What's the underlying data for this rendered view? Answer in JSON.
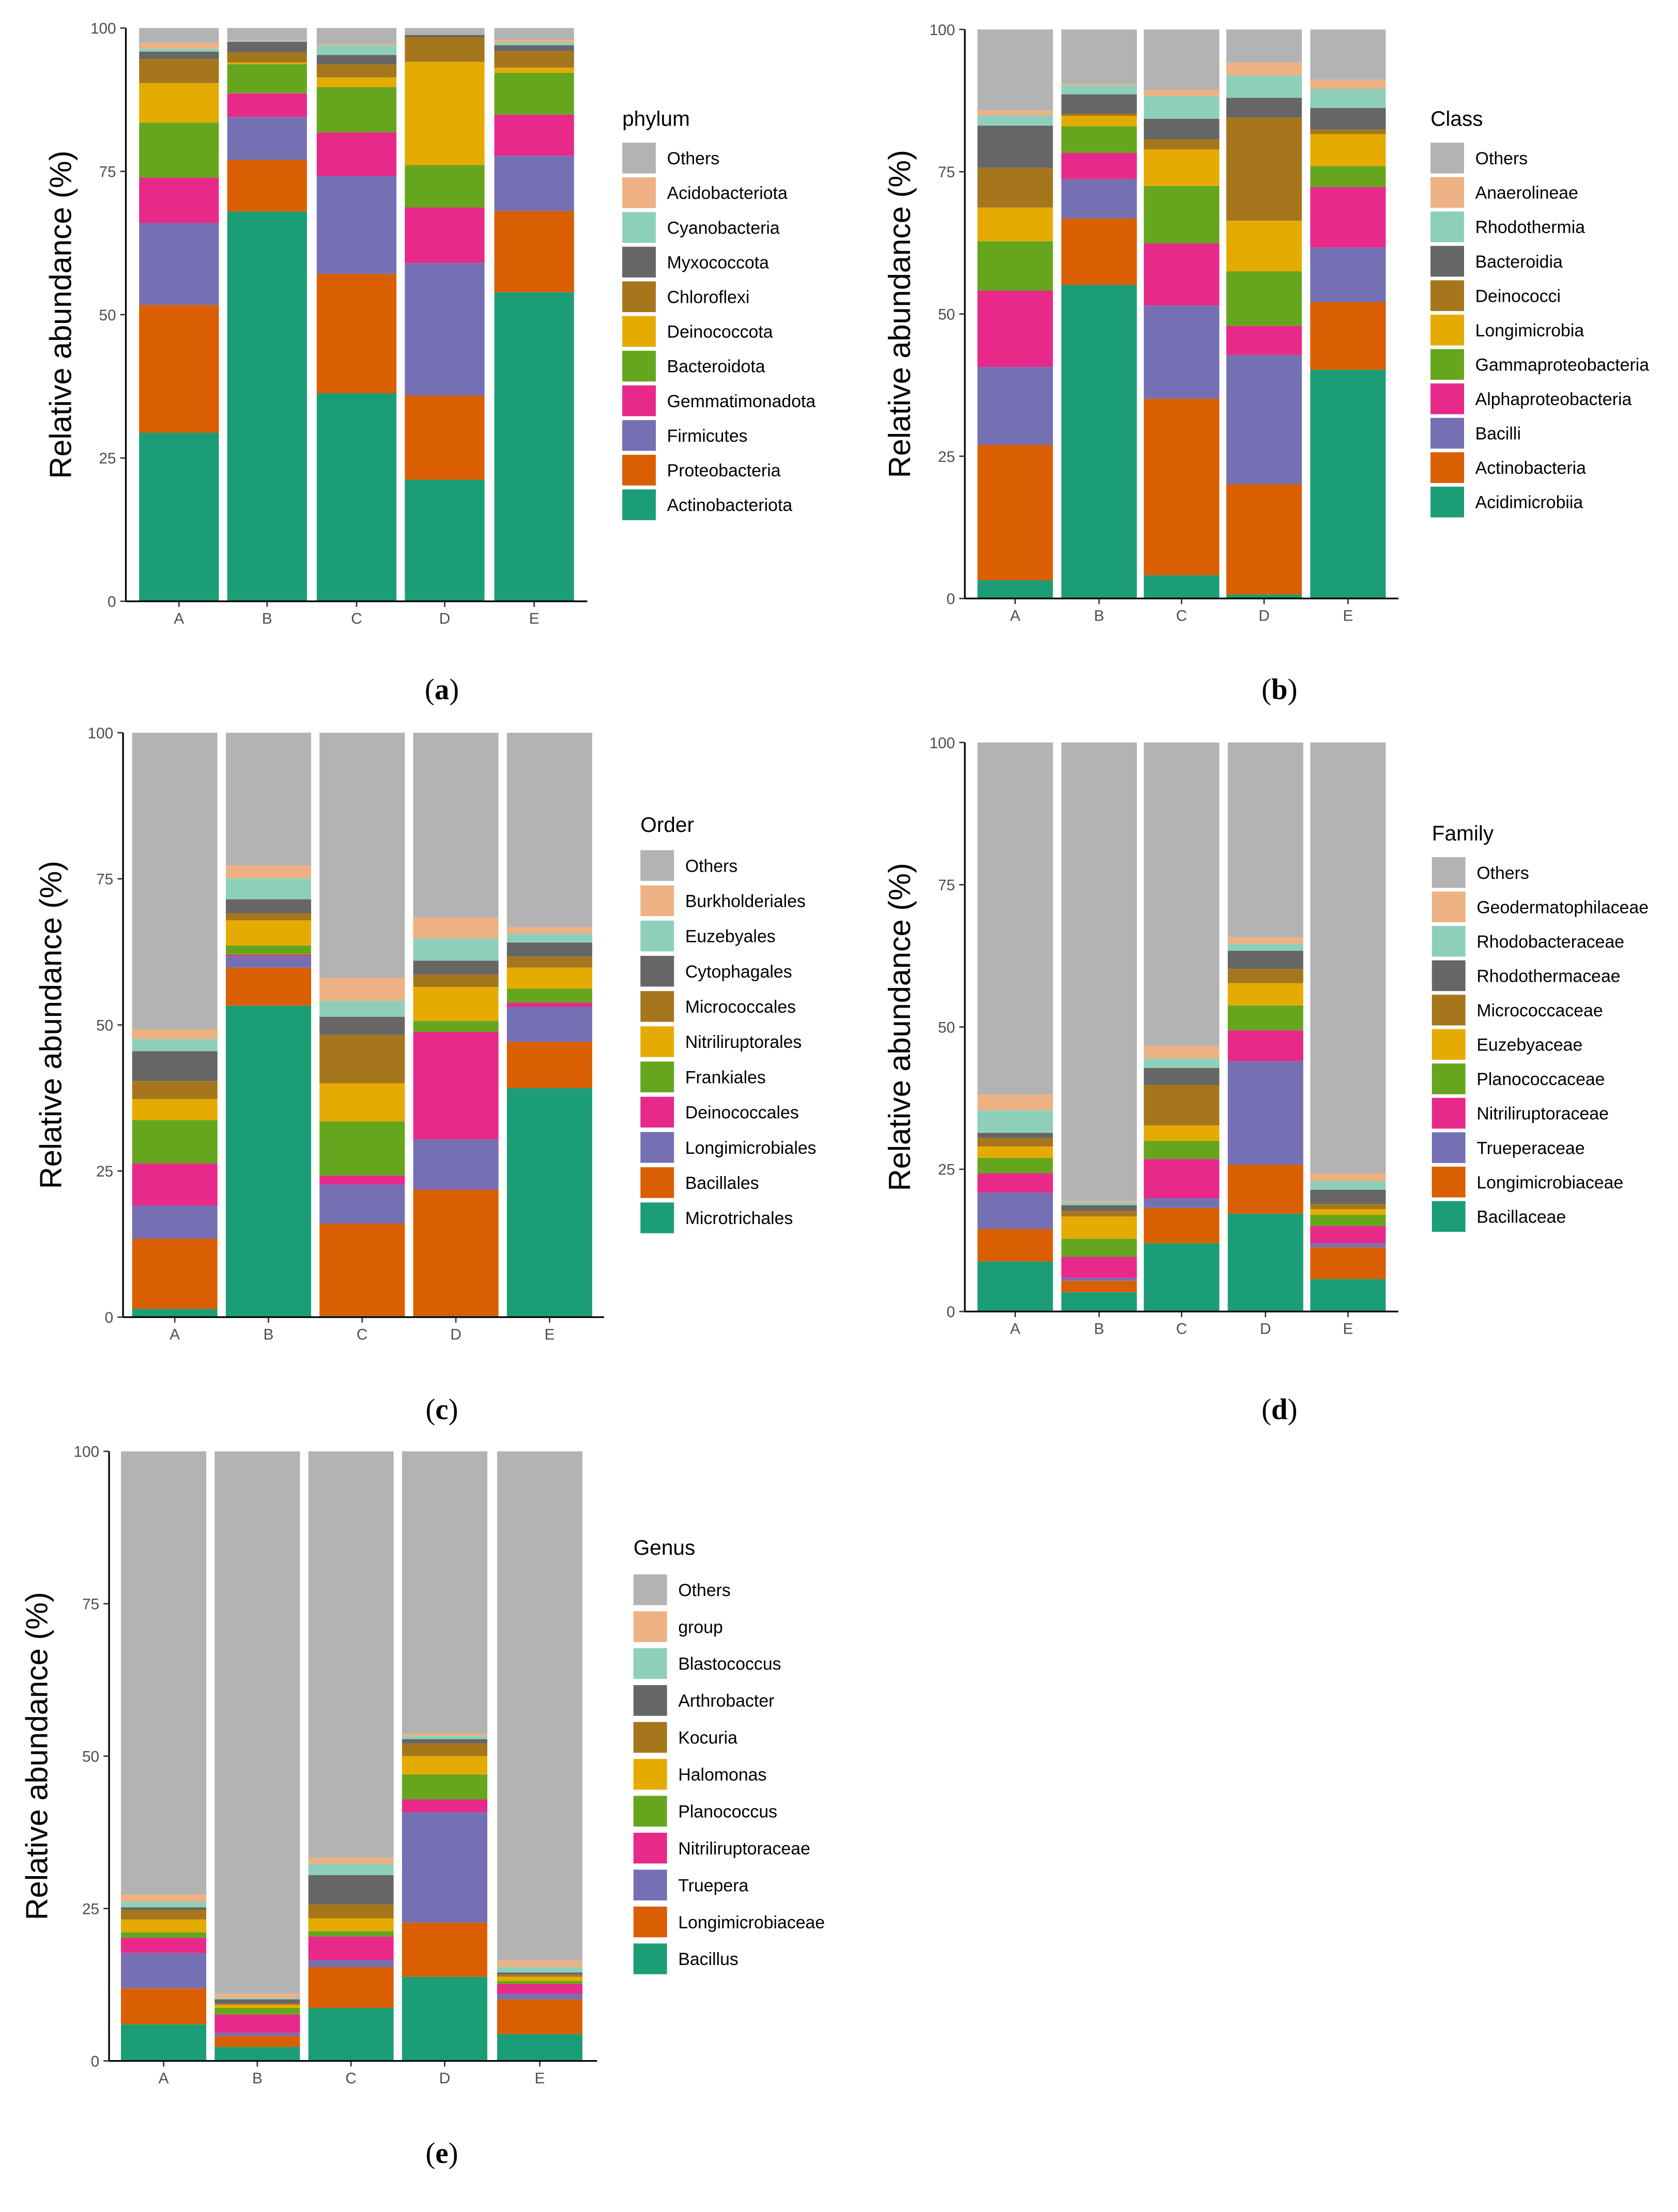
{
  "colors": {
    "Others": "#B3B3B3",
    "c10": "#EDB183",
    "c9": "#8ECFBB",
    "c8": "#666666",
    "c7": "#A6761D",
    "c6": "#E6AB02",
    "c5": "#66A61E",
    "c4": "#E7298A",
    "c3": "#7570B3",
    "c2": "#D95F02",
    "c1": "#1B9E77"
  },
  "chart_data": [
    {
      "type": "bar",
      "stacked": true,
      "caption_letter": "a",
      "ylabel": "Relative abundance (%)",
      "ylim": [
        0,
        100
      ],
      "yticks": [
        "0",
        "25",
        "50",
        "75",
        "100"
      ],
      "categories": [
        "A",
        "B",
        "C",
        "D",
        "E"
      ],
      "legend_title": "phylum",
      "legend_position": "right",
      "series": [
        {
          "name": "Others",
          "values": [
            2.6,
            2.2,
            2.8,
            1.2,
            2.0
          ]
        },
        {
          "name": "Acidobacteriota",
          "values": [
            1.0,
            0.1,
            0.2,
            0.0,
            0.5
          ]
        },
        {
          "name": "Cyanobacteria",
          "values": [
            0.5,
            0.1,
            1.7,
            0.0,
            0.5
          ]
        },
        {
          "name": "Myxococcota",
          "values": [
            1.3,
            1.8,
            1.6,
            0.4,
            1.0
          ]
        },
        {
          "name": "Chloroflexi",
          "values": [
            4.2,
            1.8,
            2.3,
            4.3,
            2.9
          ]
        },
        {
          "name": "Deinococcota",
          "values": [
            6.9,
            0.3,
            1.7,
            18.0,
            0.9
          ]
        },
        {
          "name": "Bacteroidota",
          "values": [
            9.6,
            5.1,
            7.9,
            7.4,
            7.3
          ]
        },
        {
          "name": "Gemmatimonadota",
          "values": [
            7.9,
            4.1,
            7.6,
            9.7,
            7.2
          ]
        },
        {
          "name": "Firmicutes",
          "values": [
            14.3,
            7.5,
            17.1,
            23.1,
            9.6
          ]
        },
        {
          "name": "Proteobacteria",
          "values": [
            22.3,
            9.0,
            20.8,
            14.7,
            14.2
          ]
        },
        {
          "name": "Actinobacteriota",
          "values": [
            29.4,
            68.0,
            36.3,
            21.2,
            53.9
          ]
        }
      ]
    },
    {
      "type": "bar",
      "stacked": true,
      "caption_letter": "b",
      "ylabel": "Relative abundance (%)",
      "ylim": [
        0,
        100
      ],
      "yticks": [
        "0",
        "25",
        "50",
        "75",
        "100"
      ],
      "categories": [
        "A",
        "B",
        "C",
        "D",
        "E"
      ],
      "legend_title": "Class",
      "legend_position": "right",
      "series": [
        {
          "name": "Others",
          "values": [
            14.2,
            9.6,
            10.6,
            5.8,
            8.8
          ]
        },
        {
          "name": "Anaerolineae",
          "values": [
            0.9,
            0.2,
            1.1,
            2.3,
            1.6
          ]
        },
        {
          "name": "Rhodothermia",
          "values": [
            1.8,
            1.6,
            4.0,
            3.9,
            3.4
          ]
        },
        {
          "name": "Bacteroidia",
          "values": [
            7.4,
            3.4,
            3.6,
            3.5,
            3.8
          ]
        },
        {
          "name": "Deinococci",
          "values": [
            7.0,
            0.4,
            1.8,
            18.1,
            0.8
          ]
        },
        {
          "name": "Longimicrobia",
          "values": [
            5.9,
            1.8,
            6.4,
            8.9,
            5.6
          ]
        },
        {
          "name": "Gammaproteobacteria",
          "values": [
            8.7,
            4.7,
            10.1,
            9.6,
            3.7
          ]
        },
        {
          "name": "Alphaproteobacteria",
          "values": [
            13.4,
            4.6,
            10.9,
            5.1,
            10.6
          ]
        },
        {
          "name": "Bacilli",
          "values": [
            13.7,
            6.9,
            16.4,
            22.7,
            9.6
          ]
        },
        {
          "name": "Actinobacteria",
          "values": [
            23.8,
            11.7,
            31.0,
            19.4,
            11.9
          ]
        },
        {
          "name": "Acidimicrobiia",
          "values": [
            3.2,
            55.1,
            4.1,
            0.7,
            40.2
          ]
        }
      ]
    },
    {
      "type": "bar",
      "stacked": true,
      "caption_letter": "c",
      "ylabel": "Relative abundance (%)",
      "ylim": [
        0,
        100
      ],
      "yticks": [
        "0",
        "25",
        "50",
        "75",
        "100"
      ],
      "categories": [
        "A",
        "B",
        "C",
        "D",
        "E"
      ],
      "legend_title": "Order",
      "legend_position": "right",
      "series": [
        {
          "name": "Others",
          "values": [
            50.7,
            22.7,
            41.9,
            31.6,
            33.3
          ]
        },
        {
          "name": "Burkholderiales",
          "values": [
            1.7,
            2.2,
            4.0,
            3.6,
            1.1
          ]
        },
        {
          "name": "Euzebyales",
          "values": [
            2.1,
            3.6,
            2.7,
            3.8,
            1.5
          ]
        },
        {
          "name": "Cytophagales",
          "values": [
            5.1,
            2.4,
            3.1,
            2.4,
            2.4
          ]
        },
        {
          "name": "Micrococcales",
          "values": [
            3.1,
            1.2,
            8.3,
            2.1,
            1.9
          ]
        },
        {
          "name": "Nitriliruptorales",
          "values": [
            3.6,
            4.3,
            6.5,
            5.8,
            3.6
          ]
        },
        {
          "name": "Frankiales",
          "values": [
            7.4,
            1.6,
            9.3,
            1.9,
            2.4
          ]
        },
        {
          "name": "Deinococcales",
          "values": [
            7.2,
            0.3,
            1.5,
            18.4,
            0.7
          ]
        },
        {
          "name": "Longimicrobiales",
          "values": [
            5.7,
            1.9,
            6.7,
            8.6,
            6.0
          ]
        },
        {
          "name": "Bacillales",
          "values": [
            12.0,
            6.5,
            15.8,
            21.6,
            7.9
          ]
        },
        {
          "name": "Microtrichales",
          "values": [
            1.4,
            53.3,
            0.2,
            0.2,
            39.2
          ]
        }
      ]
    },
    {
      "type": "bar",
      "stacked": true,
      "caption_letter": "d",
      "ylabel": "Relative abundance (%)",
      "ylim": [
        0,
        100
      ],
      "yticks": [
        "0",
        "25",
        "50",
        "75",
        "100"
      ],
      "categories": [
        "A",
        "B",
        "C",
        "D",
        "E"
      ],
      "legend_title": "Family",
      "legend_position": "right",
      "series": [
        {
          "name": "Others",
          "values": [
            61.9,
            80.6,
            53.3,
            34.2,
            75.7
          ]
        },
        {
          "name": "Geodermatophilaceae",
          "values": [
            2.7,
            0.2,
            2.2,
            1.2,
            1.4
          ]
        },
        {
          "name": "Rhodobacteraceae",
          "values": [
            4.0,
            0.5,
            1.7,
            1.2,
            1.5
          ]
        },
        {
          "name": "Rhodothermaceae",
          "values": [
            0.9,
            1.0,
            3.0,
            3.2,
            2.5
          ]
        },
        {
          "name": "Micrococcaceae",
          "values": [
            1.5,
            1.0,
            7.1,
            2.5,
            0.9
          ]
        },
        {
          "name": "Euzebyaceae",
          "values": [
            2.0,
            3.9,
            2.7,
            3.9,
            1.0
          ]
        },
        {
          "name": "Planococcaceae",
          "values": [
            2.7,
            3.2,
            3.2,
            4.4,
            2.0
          ]
        },
        {
          "name": "Nitriliruptoraceae",
          "values": [
            3.4,
            3.7,
            6.9,
            5.4,
            3.0
          ]
        },
        {
          "name": "Trueperaceae",
          "values": [
            6.4,
            0.5,
            1.7,
            18.2,
            0.7
          ]
        },
        {
          "name": "Longimicrobiaceae",
          "values": [
            5.7,
            2.0,
            6.2,
            8.6,
            5.6
          ]
        },
        {
          "name": "Bacillaceae",
          "values": [
            8.8,
            3.4,
            12.0,
            17.2,
            5.7
          ]
        }
      ]
    },
    {
      "type": "bar",
      "stacked": true,
      "caption_letter": "e",
      "ylabel": "Relative abundance (%)",
      "ylim": [
        0,
        100
      ],
      "yticks": [
        "0",
        "25",
        "50",
        "75",
        "100"
      ],
      "categories": [
        "A",
        "B",
        "C",
        "D",
        "E"
      ],
      "legend_title": "Genus",
      "legend_position": "right",
      "series": [
        {
          "name": "Others",
          "values": [
            72.7,
            89.0,
            66.7,
            46.3,
            83.5
          ]
        },
        {
          "name": "group",
          "values": [
            1.2,
            0.7,
            1.0,
            0.4,
            1.1
          ]
        },
        {
          "name": "Blastococcus",
          "values": [
            0.9,
            0.2,
            1.8,
            0.5,
            0.9
          ]
        },
        {
          "name": "Arthrobacter",
          "values": [
            0.4,
            0.7,
            4.8,
            0.7,
            0.3
          ]
        },
        {
          "name": "Kocuria",
          "values": [
            1.6,
            0.2,
            2.3,
            2.1,
            0.4
          ]
        },
        {
          "name": "Halomonas",
          "values": [
            2.1,
            0.5,
            2.1,
            3.0,
            0.7
          ]
        },
        {
          "name": "Planococcus",
          "values": [
            0.9,
            1.1,
            0.9,
            4.1,
            0.5
          ]
        },
        {
          "name": "Nitriliruptoraceae",
          "values": [
            2.5,
            3.0,
            3.9,
            2.1,
            1.6
          ]
        },
        {
          "name": "Truepera",
          "values": [
            5.8,
            0.5,
            1.1,
            18.1,
            0.9
          ]
        },
        {
          "name": "Longimicrobiaceae",
          "values": [
            5.9,
            1.8,
            6.7,
            8.9,
            5.7
          ]
        },
        {
          "name": "Bacillus",
          "values": [
            6.0,
            2.3,
            8.7,
            13.8,
            4.4
          ]
        }
      ]
    }
  ]
}
